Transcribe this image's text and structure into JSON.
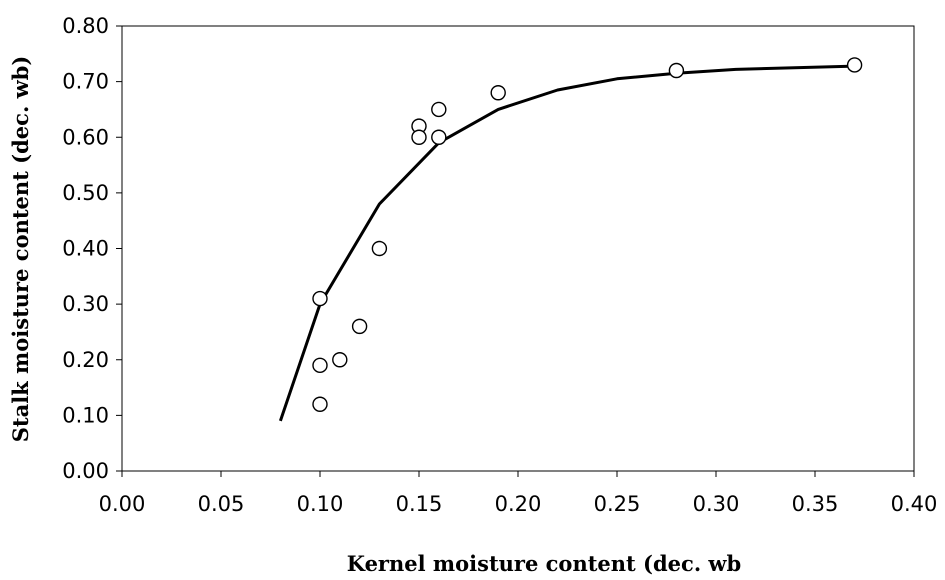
{
  "chart_data": {
    "type": "scatter",
    "title": "",
    "xlabel": "Kernel moisture content (dec. wb",
    "ylabel": "Stalk moisture content (dec. wb)",
    "xlim": [
      0,
      0.4
    ],
    "ylim": [
      0,
      0.8
    ],
    "x_ticks": [
      "0.00",
      "0.05",
      "0.10",
      "0.15",
      "0.20",
      "0.25",
      "0.30",
      "0.35",
      "0.40"
    ],
    "y_ticks": [
      "0.00",
      "0.10",
      "0.20",
      "0.30",
      "0.40",
      "0.50",
      "0.60",
      "0.70",
      "0.80"
    ],
    "grid": false,
    "legend": "none",
    "series": [
      {
        "type": "scatter",
        "marker": "open-circle",
        "x": [
          0.1,
          0.1,
          0.1,
          0.11,
          0.12,
          0.13,
          0.15,
          0.15,
          0.16,
          0.16,
          0.19,
          0.28,
          0.37
        ],
        "y": [
          0.12,
          0.19,
          0.31,
          0.2,
          0.26,
          0.4,
          0.62,
          0.6,
          0.6,
          0.65,
          0.68,
          0.72,
          0.73
        ]
      },
      {
        "type": "line",
        "color": "#000000",
        "x": [
          0.08,
          0.1,
          0.13,
          0.16,
          0.19,
          0.22,
          0.25,
          0.28,
          0.31,
          0.37
        ],
        "y": [
          0.09,
          0.3,
          0.48,
          0.59,
          0.65,
          0.685,
          0.705,
          0.715,
          0.722,
          0.728
        ]
      }
    ]
  }
}
